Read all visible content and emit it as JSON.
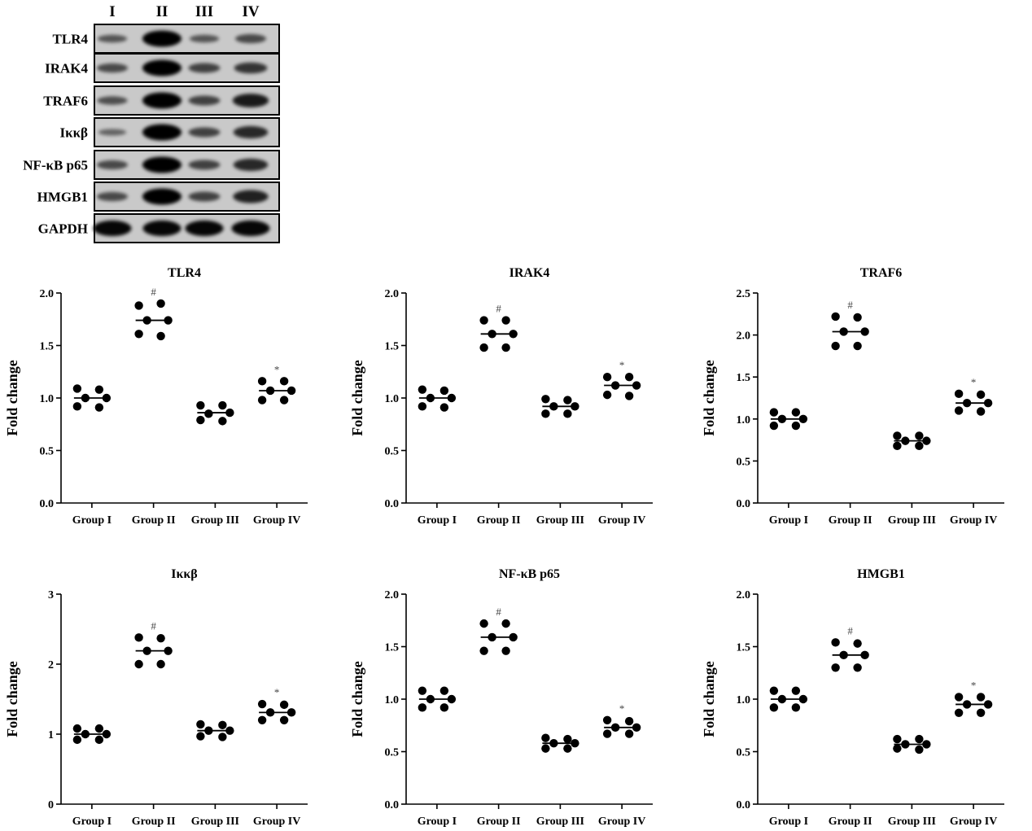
{
  "blot": {
    "lanes": [
      "I",
      "II",
      "III",
      "IV"
    ],
    "rows": [
      {
        "label": "TLR4",
        "intensity": [
          0.35,
          1.0,
          0.35,
          0.45
        ]
      },
      {
        "label": "IRAK4",
        "intensity": [
          0.45,
          1.0,
          0.5,
          0.6
        ]
      },
      {
        "label": "TRAF6",
        "intensity": [
          0.4,
          1.0,
          0.5,
          0.8
        ]
      },
      {
        "label": "Iκκβ",
        "intensity": [
          0.25,
          1.0,
          0.5,
          0.7
        ]
      },
      {
        "label": "NF-κB p65",
        "intensity": [
          0.45,
          1.0,
          0.5,
          0.7
        ]
      },
      {
        "label": "HMGB1",
        "intensity": [
          0.45,
          1.0,
          0.5,
          0.75
        ]
      },
      {
        "label": "GAPDH",
        "intensity": [
          0.95,
          0.95,
          0.95,
          0.95
        ]
      }
    ]
  },
  "chart_data": [
    {
      "type": "scatter",
      "title": "TLR4",
      "ylabel": "Fold change",
      "categories": [
        "Group I",
        "Group II",
        "Group III",
        "Group IV"
      ],
      "ylim": [
        0,
        2.0
      ],
      "yticks": [
        "0.0",
        "0.5",
        "1.0",
        "1.5",
        "2.0"
      ],
      "points": [
        [
          1.09,
          1.08,
          1.0,
          0.92,
          0.91,
          1.0
        ],
        [
          1.88,
          1.9,
          1.74,
          1.61,
          1.59,
          1.74
        ],
        [
          0.93,
          0.93,
          0.85,
          0.79,
          0.78,
          0.86
        ],
        [
          1.16,
          1.16,
          1.07,
          0.98,
          0.98,
          1.07
        ]
      ],
      "medians": [
        1.0,
        1.74,
        0.86,
        1.07
      ],
      "markers": [
        "",
        "#",
        "",
        "*"
      ]
    },
    {
      "type": "scatter",
      "title": "IRAK4",
      "ylabel": "Fold change",
      "categories": [
        "Group I",
        "Group II",
        "Group III",
        "Group IV"
      ],
      "ylim": [
        0,
        2.0
      ],
      "yticks": [
        "0.0",
        "0.5",
        "1.0",
        "1.5",
        "2.0"
      ],
      "points": [
        [
          1.08,
          1.07,
          1.0,
          0.92,
          0.91,
          1.0
        ],
        [
          1.74,
          1.74,
          1.61,
          1.48,
          1.48,
          1.61
        ],
        [
          0.99,
          0.98,
          0.92,
          0.85,
          0.85,
          0.92
        ],
        [
          1.2,
          1.2,
          1.12,
          1.03,
          1.02,
          1.12
        ]
      ],
      "medians": [
        1.0,
        1.61,
        0.92,
        1.12
      ],
      "markers": [
        "",
        "#",
        "",
        "*"
      ]
    },
    {
      "type": "scatter",
      "title": "TRAF6",
      "ylabel": "Fold change",
      "categories": [
        "Group I",
        "Group II",
        "Group III",
        "Group IV"
      ],
      "ylim": [
        0,
        2.5
      ],
      "yticks": [
        "0.0",
        "0.5",
        "1.0",
        "1.5",
        "2.0",
        "2.5"
      ],
      "points": [
        [
          1.08,
          1.08,
          1.0,
          0.92,
          0.92,
          1.0
        ],
        [
          2.22,
          2.21,
          2.04,
          1.87,
          1.87,
          2.04
        ],
        [
          0.8,
          0.8,
          0.74,
          0.68,
          0.68,
          0.74
        ],
        [
          1.3,
          1.29,
          1.19,
          1.1,
          1.09,
          1.19
        ]
      ],
      "medians": [
        1.0,
        2.04,
        0.74,
        1.19
      ],
      "markers": [
        "",
        "#",
        "",
        "*"
      ]
    },
    {
      "type": "scatter",
      "title": "Iκκβ",
      "ylabel": "Fold change",
      "categories": [
        "Group I",
        "Group II",
        "Group III",
        "Group IV"
      ],
      "ylim": [
        0,
        3
      ],
      "yticks": [
        "0",
        "1",
        "2",
        "3"
      ],
      "points": [
        [
          1.08,
          1.08,
          1.0,
          0.92,
          0.92,
          1.0
        ],
        [
          2.38,
          2.37,
          2.19,
          2.0,
          2.0,
          2.19
        ],
        [
          1.14,
          1.13,
          1.05,
          0.97,
          0.96,
          1.05
        ],
        [
          1.43,
          1.42,
          1.31,
          1.2,
          1.2,
          1.31
        ]
      ],
      "medians": [
        1.0,
        2.19,
        1.05,
        1.31
      ],
      "markers": [
        "",
        "#",
        "",
        "*"
      ]
    },
    {
      "type": "scatter",
      "title": "NF-κB p65",
      "ylabel": "Fold change",
      "categories": [
        "Group I",
        "Group II",
        "Group III",
        "Group IV"
      ],
      "ylim": [
        0,
        2.0
      ],
      "yticks": [
        "0.0",
        "0.5",
        "1.0",
        "1.5",
        "2.0"
      ],
      "points": [
        [
          1.08,
          1.08,
          1.0,
          0.92,
          0.92,
          1.0
        ],
        [
          1.72,
          1.72,
          1.59,
          1.46,
          1.46,
          1.59
        ],
        [
          0.63,
          0.62,
          0.58,
          0.53,
          0.53,
          0.58
        ],
        [
          0.8,
          0.79,
          0.73,
          0.67,
          0.67,
          0.73
        ]
      ],
      "medians": [
        1.0,
        1.59,
        0.58,
        0.73
      ],
      "markers": [
        "",
        "#",
        "",
        "*"
      ]
    },
    {
      "type": "scatter",
      "title": "HMGB1",
      "ylabel": "Fold change",
      "categories": [
        "Group I",
        "Group II",
        "Group III",
        "Group IV"
      ],
      "ylim": [
        0,
        2.0
      ],
      "yticks": [
        "0.0",
        "0.5",
        "1.0",
        "1.5",
        "2.0"
      ],
      "points": [
        [
          1.08,
          1.08,
          1.0,
          0.92,
          0.92,
          1.0
        ],
        [
          1.54,
          1.53,
          1.42,
          1.3,
          1.3,
          1.42
        ],
        [
          0.62,
          0.62,
          0.57,
          0.53,
          0.52,
          0.57
        ],
        [
          1.02,
          1.02,
          0.95,
          0.87,
          0.87,
          0.95
        ]
      ],
      "medians": [
        1.0,
        1.42,
        0.57,
        0.95
      ],
      "markers": [
        "",
        "#",
        "",
        "*"
      ]
    }
  ]
}
